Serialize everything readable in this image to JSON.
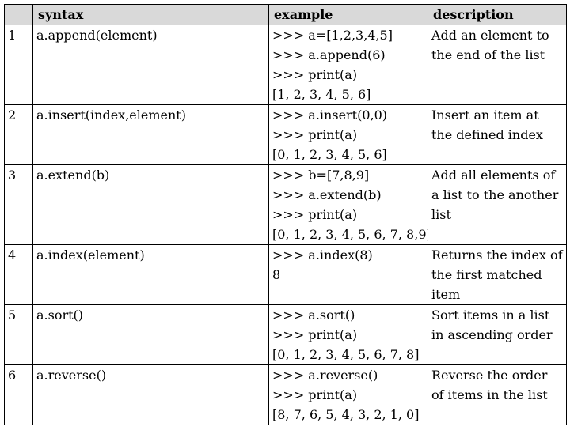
{
  "headers": {
    "number": "",
    "syntax": "syntax",
    "example": "example",
    "description": "description"
  },
  "rows": [
    {
      "num": "1",
      "syntax": "a.append(element)",
      "example": [
        ">>> a=[1,2,3,4,5]",
        ">>> a.append(6)",
        ">>> print(a)",
        "[1, 2, 3, 4, 5, 6]"
      ],
      "description": "Add an element to the end of the list"
    },
    {
      "num": "2",
      "syntax": "a.insert(index,element)",
      "example": [
        ">>> a.insert(0,0)",
        ">>> print(a)",
        "[0, 1, 2, 3, 4, 5, 6]"
      ],
      "description": "Insert an item at the defined index"
    },
    {
      "num": "3",
      "syntax": "a.extend(b)",
      "example": [
        ">>> b=[7,8,9]",
        ">>> a.extend(b)",
        ">>> print(a)",
        "[0, 1, 2, 3, 4, 5, 6, 7, 8,9]"
      ],
      "description": "Add all elements of a list to the another list"
    },
    {
      "num": "4",
      "syntax": "a.index(element)",
      "example": [
        ">>> a.index(8)",
        "8"
      ],
      "description": "Returns the index of the first matched item"
    },
    {
      "num": "5",
      "syntax": "a.sort()",
      "example": [
        ">>> a.sort()",
        ">>> print(a)",
        "[0, 1, 2, 3, 4, 5, 6, 7, 8]"
      ],
      "description": "Sort items in a list in ascending order"
    },
    {
      "num": "6",
      "syntax": "a.reverse()",
      "example": [
        ">>> a.reverse()",
        ">>> print(a)",
        "[8, 7, 6, 5, 4, 3, 2, 1, 0]"
      ],
      "description": "Reverse the order of items in the list"
    }
  ]
}
